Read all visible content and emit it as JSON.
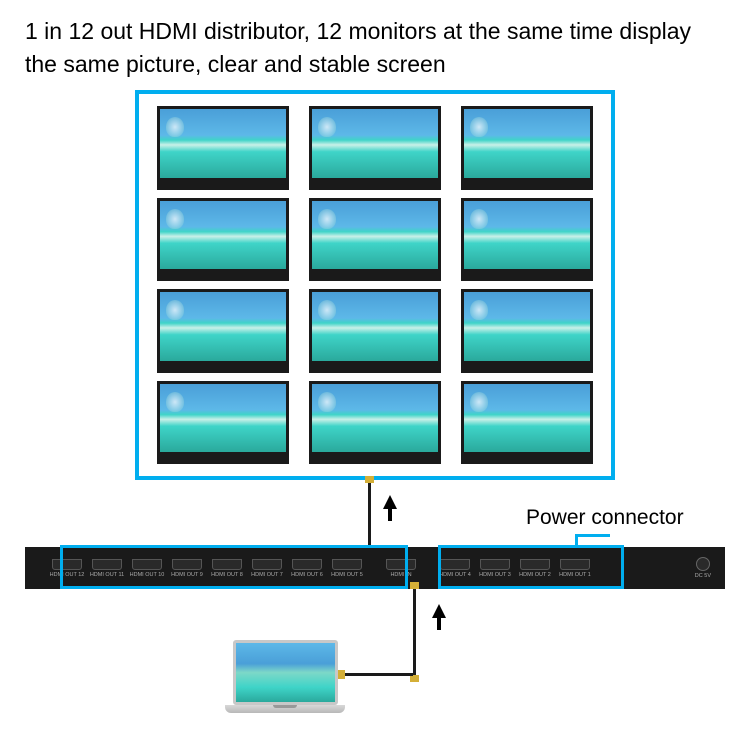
{
  "header": {
    "text": "1 in 12 out HDMI distributor, 12 monitors at the same time display the same picture, clear and stable screen"
  },
  "callout": {
    "label": "Power connector"
  },
  "colors": {
    "accent": "#00aeef",
    "device": "#1a1a1a",
    "cable_connector": "#d4af37",
    "background": "#ffffff"
  },
  "monitors": {
    "count": 12,
    "grid_cols": 3,
    "grid_rows": 4
  },
  "device": {
    "ports_left": [
      {
        "label": "HDMI OUT 12"
      },
      {
        "label": "HDMI OUT 11"
      },
      {
        "label": "HDMI OUT 10"
      },
      {
        "label": "HDMI OUT 9"
      },
      {
        "label": "HDMI OUT 8"
      },
      {
        "label": "HDMI OUT 7"
      },
      {
        "label": "HDMI OUT 6"
      },
      {
        "label": "HDMI OUT 5"
      }
    ],
    "port_in": {
      "label": "HDMI IN"
    },
    "ports_right": [
      {
        "label": "HDMI OUT 4"
      },
      {
        "label": "HDMI OUT 3"
      },
      {
        "label": "HDMI OUT 2"
      },
      {
        "label": "HDMI OUT 1"
      }
    ],
    "power_label": "DC 5V"
  }
}
